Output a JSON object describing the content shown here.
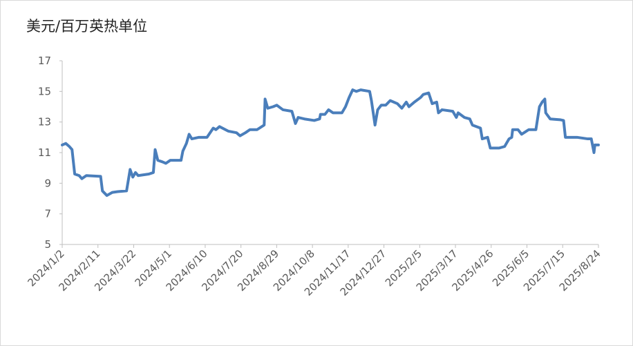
{
  "chart_data": {
    "type": "line",
    "title": "美元/百万英热单位",
    "x": [
      "2024/1/2",
      "2024/1/6",
      "2024/1/10",
      "2024/1/13",
      "2024/1/16",
      "2024/1/21",
      "2024/1/24",
      "2024/1/29",
      "2024/2/14",
      "2024/2/16",
      "2024/2/21",
      "2024/2/27",
      "2024/3/4",
      "2024/3/14",
      "2024/3/18",
      "2024/3/21",
      "2024/3/24",
      "2024/3/27",
      "2024/4/8",
      "2024/4/13",
      "2024/4/15",
      "2024/4/18",
      "2024/4/23",
      "2024/4/27",
      "2024/5/2",
      "2024/5/14",
      "2024/5/16",
      "2024/5/20",
      "2024/5/23",
      "2024/5/26",
      "2024/6/3",
      "2024/6/12",
      "2024/6/19",
      "2024/6/22",
      "2024/6/26",
      "2024/7/6",
      "2024/7/15",
      "2024/7/19",
      "2024/7/25",
      "2024/7/30",
      "2024/8/7",
      "2024/8/15",
      "2024/8/16",
      "2024/8/19",
      "2024/8/25",
      "2024/8/29",
      "2024/9/5",
      "2024/9/15",
      "2024/9/19",
      "2024/9/22",
      "2024/9/29",
      "2024/10/10",
      "2024/10/16",
      "2024/10/17",
      "2024/10/22",
      "2024/10/26",
      "2024/10/31",
      "2024/11/10",
      "2024/11/14",
      "2024/11/18",
      "2024/11/22",
      "2024/11/26",
      "2024/12/1",
      "2024/12/11",
      "2024/12/13",
      "2024/12/17",
      "2024/12/20",
      "2024/12/24",
      "2024/12/29",
      "2025/1/3",
      "2025/1/11",
      "2025/1/16",
      "2025/1/21",
      "2025/1/24",
      "2025/1/30",
      "2025/2/6",
      "2025/2/9",
      "2025/2/15",
      "2025/2/19",
      "2025/2/24",
      "2025/2/26",
      "2025/3/2",
      "2025/3/14",
      "2025/3/18",
      "2025/3/20",
      "2025/3/27",
      "2025/4/2",
      "2025/4/5",
      "2025/4/14",
      "2025/4/16",
      "2025/4/22",
      "2025/4/25",
      "2025/5/5",
      "2025/5/11",
      "2025/5/16",
      "2025/5/19",
      "2025/5/20",
      "2025/5/26",
      "2025/5/30",
      "2025/6/7",
      "2025/6/15",
      "2025/6/19",
      "2025/6/22",
      "2025/6/25",
      "2025/6/26",
      "2025/7/1",
      "2025/7/12",
      "2025/7/16",
      "2025/7/18",
      "2025/7/23",
      "2025/7/31",
      "2025/8/12",
      "2025/8/16",
      "2025/8/19",
      "2025/8/20",
      "2025/8/24"
    ],
    "series": [
      {
        "color": "#4a7ebb",
        "values": [
          11.5,
          11.6,
          11.4,
          11.2,
          9.6,
          9.5,
          9.3,
          9.5,
          9.45,
          8.5,
          8.2,
          8.4,
          8.45,
          8.5,
          9.9,
          9.4,
          9.7,
          9.5,
          9.6,
          9.7,
          11.2,
          10.5,
          10.4,
          10.3,
          10.5,
          10.5,
          11.1,
          11.6,
          12.2,
          11.9,
          12.0,
          12.0,
          12.6,
          12.5,
          12.7,
          12.4,
          12.3,
          12.1,
          12.3,
          12.5,
          12.5,
          12.8,
          14.5,
          13.9,
          14.0,
          14.1,
          13.8,
          13.7,
          12.9,
          13.3,
          13.2,
          13.1,
          13.2,
          13.5,
          13.5,
          13.8,
          13.6,
          13.6,
          14.0,
          14.6,
          15.1,
          15.0,
          15.1,
          15.0,
          14.4,
          12.8,
          13.8,
          14.1,
          14.1,
          14.4,
          14.2,
          13.9,
          14.3,
          14.0,
          14.3,
          14.6,
          14.8,
          14.9,
          14.2,
          14.3,
          13.6,
          13.8,
          13.7,
          13.3,
          13.6,
          13.3,
          13.2,
          12.8,
          12.6,
          11.9,
          12.0,
          11.3,
          11.3,
          11.4,
          11.9,
          12.0,
          12.5,
          12.5,
          12.2,
          12.5,
          12.5,
          14.0,
          14.3,
          14.5,
          13.6,
          13.2,
          13.15,
          13.1,
          12.0,
          12.0,
          12.0,
          11.9,
          11.9,
          11.0,
          11.5,
          11.5
        ]
      }
    ],
    "xlim": [
      "2024/1/2",
      "2025/8/24"
    ],
    "xticks": [
      "2024/1/2",
      "2024/2/11",
      "2024/3/22",
      "2024/5/1",
      "2024/6/10",
      "2024/7/20",
      "2024/8/29",
      "2024/10/8",
      "2024/11/17",
      "2024/12/27",
      "2025/2/5",
      "2025/3/17",
      "2025/4/26",
      "2025/6/5",
      "2025/7/15",
      "2025/8/24"
    ],
    "ylim": [
      5,
      17
    ],
    "yticks": [
      5,
      7,
      9,
      11,
      13,
      15,
      17
    ],
    "grid": false
  }
}
